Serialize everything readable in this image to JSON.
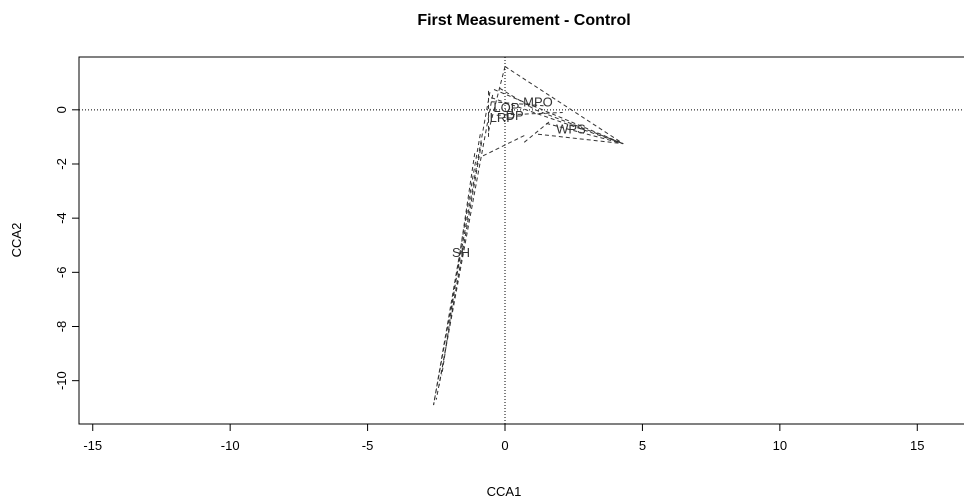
{
  "chart_data": {
    "type": "scatter",
    "title": "First Measurement - Control",
    "xlabel": "CCA1",
    "ylabel": "CCA2",
    "xlim": [
      -15.5,
      16.7
    ],
    "ylim": [
      -11.6,
      1.95
    ],
    "xticks": [
      -15,
      -10,
      -5,
      0,
      5,
      10,
      15
    ],
    "yticks": [
      0,
      -2,
      -4,
      -6,
      -8,
      -10
    ],
    "reference_lines": {
      "x": 0,
      "y": 0,
      "style": "dotted"
    },
    "labels": [
      {
        "text": "MPO",
        "x": 1.2,
        "y": 0.25
      },
      {
        "text": "LOP",
        "x": 0.05,
        "y": 0.05
      },
      {
        "text": "DP",
        "x": 0.35,
        "y": -0.25
      },
      {
        "text": "LRP",
        "x": -0.1,
        "y": -0.32
      },
      {
        "text": "WPS",
        "x": 2.4,
        "y": -0.75
      },
      {
        "text": "SH",
        "x": -1.6,
        "y": -5.3
      }
    ],
    "hull_segments": [
      {
        "from": [
          0.0,
          1.6
        ],
        "to": [
          4.3,
          -1.25
        ]
      },
      {
        "from": [
          0.0,
          1.6
        ],
        "to": [
          -0.6,
          -0.8
        ]
      },
      {
        "from": [
          -0.4,
          0.75
        ],
        "to": [
          4.3,
          -1.25
        ]
      },
      {
        "from": [
          -0.5,
          0.45
        ],
        "to": [
          4.3,
          -1.25
        ]
      },
      {
        "from": [
          -0.2,
          0.8
        ],
        "to": [
          1.1,
          0.0
        ]
      },
      {
        "from": [
          1.1,
          0.0
        ],
        "to": [
          4.3,
          -1.25
        ]
      },
      {
        "from": [
          1.5,
          -0.5
        ],
        "to": [
          4.3,
          -1.25
        ]
      },
      {
        "from": [
          1.2,
          -0.9
        ],
        "to": [
          4.3,
          -1.25
        ]
      },
      {
        "from": [
          0.7,
          -1.2
        ],
        "to": [
          1.6,
          -0.45
        ]
      },
      {
        "from": [
          -0.8,
          -1.7
        ],
        "to": [
          0.8,
          -0.9
        ]
      },
      {
        "from": [
          -0.5,
          0.3
        ],
        "to": [
          1.4,
          0.15
        ]
      },
      {
        "from": [
          -0.3,
          -0.2
        ],
        "to": [
          2.1,
          -0.1
        ]
      },
      {
        "from": [
          -0.6,
          0.7
        ],
        "to": [
          -0.6,
          -1.0
        ]
      },
      {
        "from": [
          -0.55,
          0.65
        ],
        "to": [
          -2.6,
          -10.9
        ]
      },
      {
        "from": [
          -0.45,
          0.55
        ],
        "to": [
          -2.5,
          -10.7
        ]
      },
      {
        "from": [
          -0.9,
          -0.9
        ],
        "to": [
          -2.6,
          -10.9
        ]
      },
      {
        "from": [
          -1.1,
          -1.6
        ],
        "to": [
          -2.3,
          -9.8
        ]
      },
      {
        "from": [
          -0.85,
          -1.2
        ],
        "to": [
          -2.4,
          -10.2
        ]
      }
    ]
  }
}
